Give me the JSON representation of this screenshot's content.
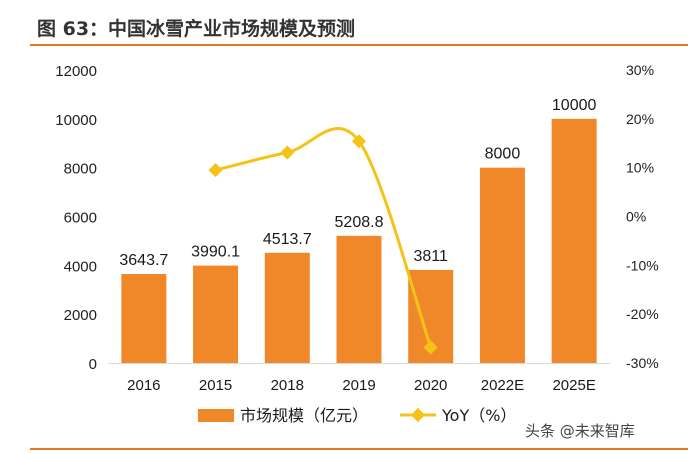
{
  "figure": {
    "title": "图 63：中国冰雪产业市场规模及预测",
    "watermark": "头条 @未来智库",
    "accent_color": "#e87722"
  },
  "chart_data": {
    "type": "bar",
    "categories": [
      "2016",
      "2015",
      "2018",
      "2019",
      "2020",
      "2022E",
      "2025E"
    ],
    "series": [
      {
        "name": "市场规模（亿元）",
        "type": "bar",
        "axis": "left",
        "color": "#f0882a",
        "values": [
          3643.7,
          3990.1,
          4513.7,
          5208.8,
          3811,
          8000,
          10000
        ],
        "labels": [
          "3643.7",
          "3990.1",
          "4513.7",
          "5208.8",
          "3811",
          "8000",
          "10000"
        ]
      },
      {
        "name": "YoY（%）",
        "type": "line",
        "axis": "right",
        "color": "#f5c218",
        "values": [
          null,
          9.5,
          13.1,
          15.4,
          -26.8,
          null,
          null
        ]
      }
    ],
    "y_left": {
      "min": 0,
      "max": 12000,
      "ticks": [
        "0",
        "2000",
        "4000",
        "6000",
        "8000",
        "10000",
        "12000"
      ]
    },
    "y_right": {
      "min": -30,
      "max": 30,
      "ticks": [
        "-30%",
        "-20%",
        "-10%",
        "0%",
        "10%",
        "20%",
        "30%"
      ]
    },
    "legend_position": "bottom",
    "grid": false
  }
}
